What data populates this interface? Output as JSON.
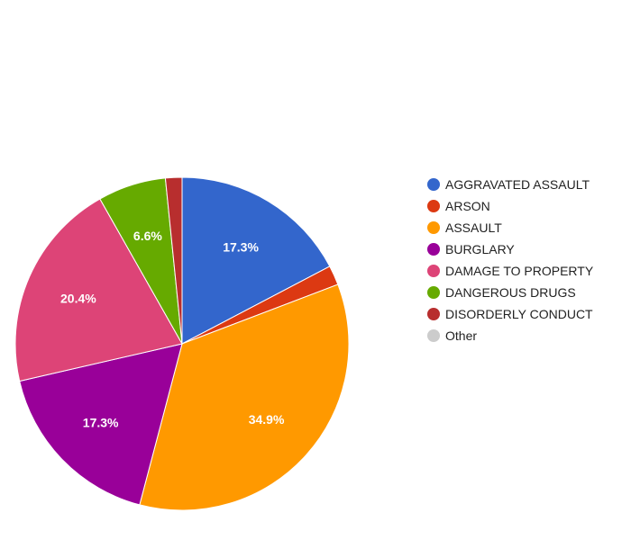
{
  "chart_data": {
    "type": "pie",
    "title": "",
    "start_angle_deg": 0,
    "direction": "clockwise",
    "legend_position": "right",
    "slices": [
      {
        "name": "AGGRAVATED ASSAULT",
        "value": 17.3,
        "color": "#3366cc",
        "label": "17.3%"
      },
      {
        "name": "ARSON",
        "value": 1.9,
        "color": "#dc3912",
        "label": ""
      },
      {
        "name": "ASSAULT",
        "value": 34.9,
        "color": "#ff9900",
        "label": "34.9%"
      },
      {
        "name": "BURGLARY",
        "value": 17.3,
        "color": "#990099",
        "label": "17.3%"
      },
      {
        "name": "DAMAGE TO PROPERTY",
        "value": 20.4,
        "color": "#dd4477",
        "label": "20.4%"
      },
      {
        "name": "DANGEROUS DRUGS",
        "value": 6.6,
        "color": "#66aa00",
        "label": "6.6%"
      },
      {
        "name": "DISORDERLY CONDUCT",
        "value": 1.6,
        "color": "#b82e2e",
        "label": ""
      },
      {
        "name": "Other",
        "value": 0,
        "color": "#cccccc",
        "label": ""
      }
    ]
  }
}
